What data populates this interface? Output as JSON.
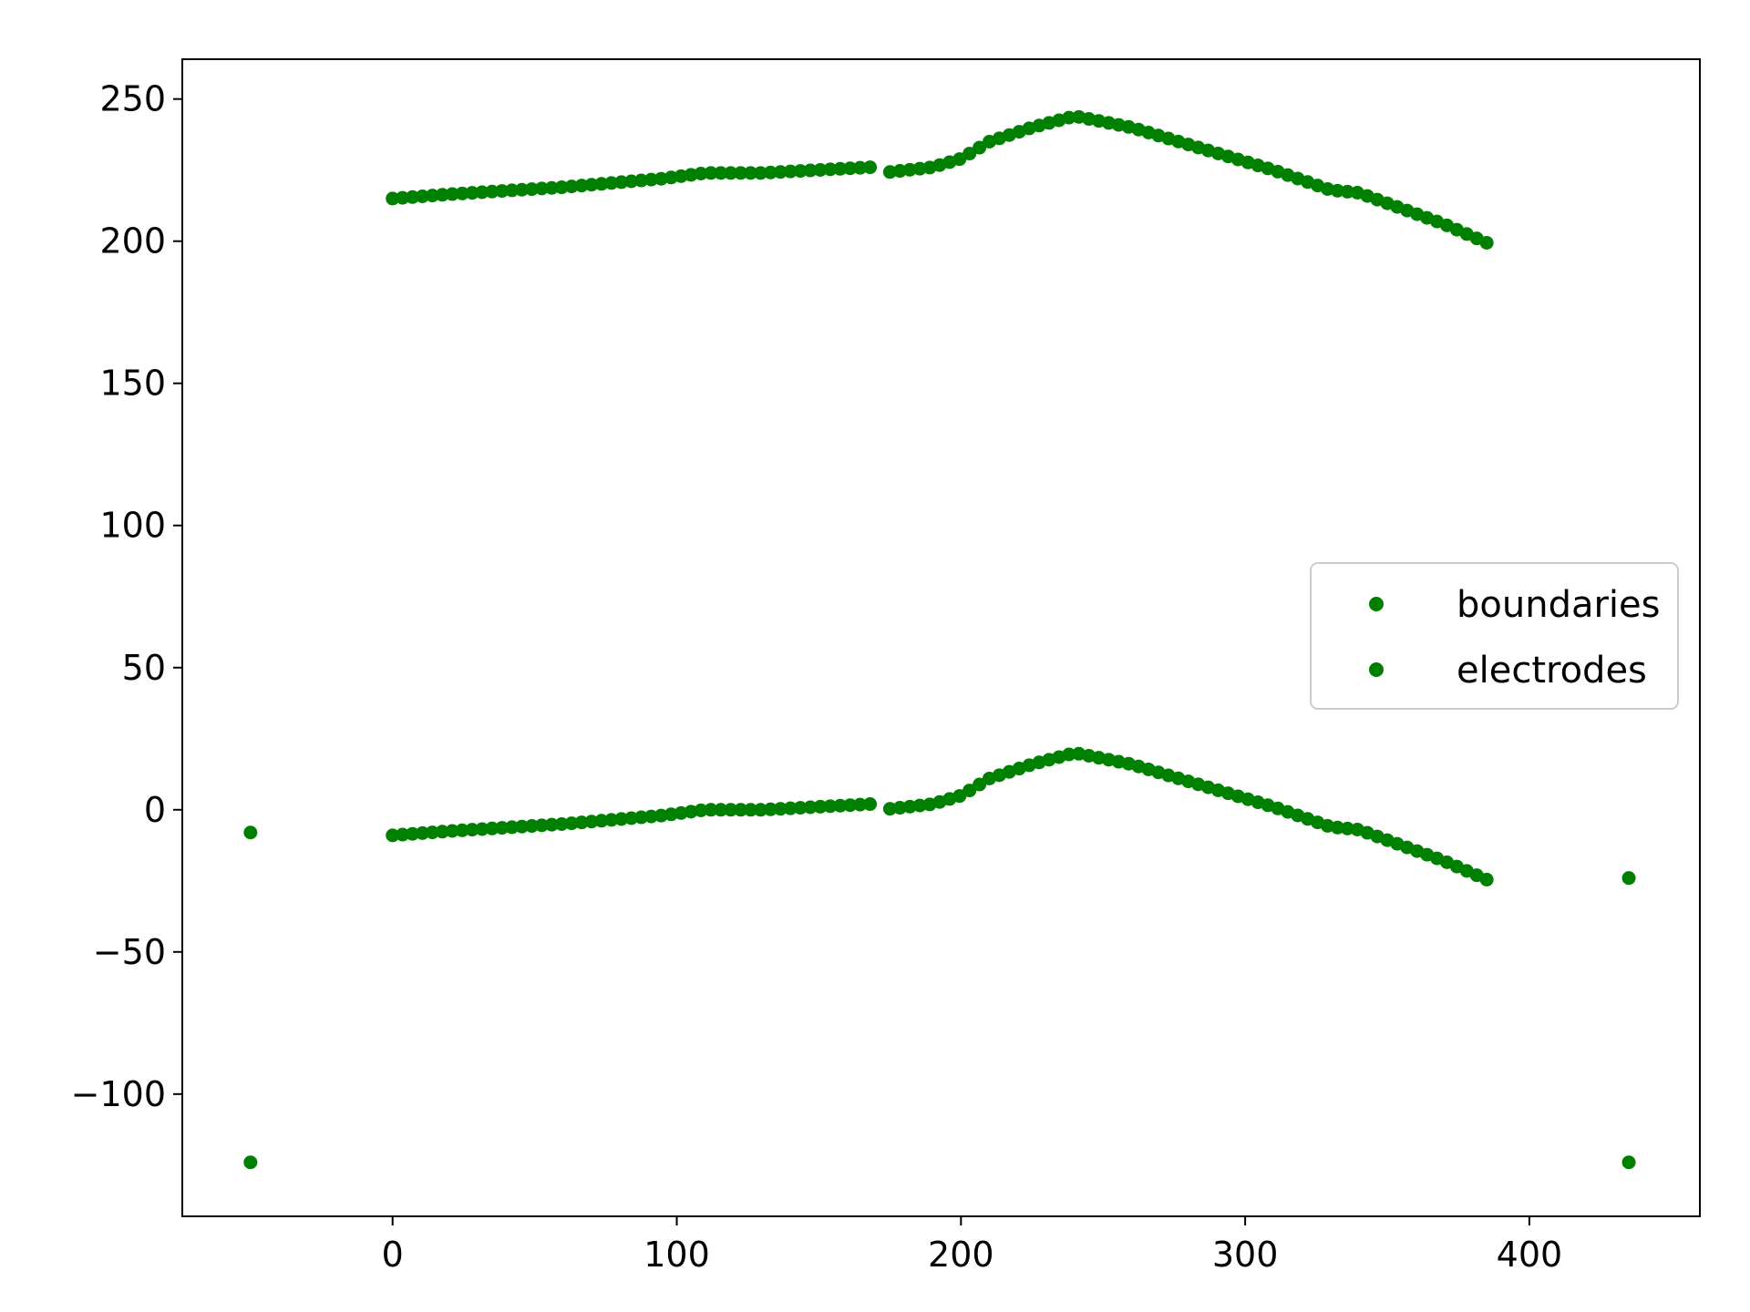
{
  "chart_data": {
    "type": "scatter",
    "title": "",
    "xlabel": "",
    "ylabel": "",
    "xlim": [
      -74,
      460
    ],
    "ylim": [
      -143,
      264
    ],
    "xticks": [
      0,
      100,
      200,
      300,
      400
    ],
    "yticks": [
      -100,
      -50,
      0,
      50,
      100,
      150,
      200,
      250
    ],
    "xtick_labels": [
      "0",
      "100",
      "200",
      "300",
      "400"
    ],
    "ytick_labels": [
      "−100",
      "−50",
      "0",
      "50",
      "100",
      "150",
      "200",
      "250"
    ],
    "grid": false,
    "legend": {
      "position": "center-right",
      "entries": [
        "boundaries",
        "electrodes"
      ]
    },
    "series": [
      {
        "name": "boundaries",
        "color": "#008000",
        "points": [
          [
            -50,
            -8
          ],
          [
            -50,
            -124
          ],
          [
            435,
            -24
          ],
          [
            435,
            -124
          ]
        ]
      },
      {
        "name": "electrodes",
        "color": "#008000",
        "upper_knots": [
          [
            0,
            215
          ],
          [
            20,
            216.5
          ],
          [
            60,
            219
          ],
          [
            95,
            222
          ],
          [
            110,
            224
          ],
          [
            130,
            224
          ],
          [
            168,
            226
          ],
          [
            172,
            224
          ],
          [
            190,
            226
          ],
          [
            200,
            229
          ],
          [
            210,
            235
          ],
          [
            225,
            240
          ],
          [
            240,
            244
          ],
          [
            260,
            240
          ],
          [
            280,
            234
          ],
          [
            310,
            225
          ],
          [
            330,
            218
          ],
          [
            340,
            217
          ],
          [
            370,
            206
          ],
          [
            386,
            199
          ]
        ],
        "lower_knots": [
          [
            0,
            -9
          ],
          [
            20,
            -7.5
          ],
          [
            60,
            -5
          ],
          [
            95,
            -2
          ],
          [
            110,
            0
          ],
          [
            130,
            0
          ],
          [
            168,
            2
          ],
          [
            172,
            0
          ],
          [
            190,
            2
          ],
          [
            200,
            5
          ],
          [
            210,
            11
          ],
          [
            225,
            16
          ],
          [
            240,
            20
          ],
          [
            260,
            16
          ],
          [
            280,
            10
          ],
          [
            310,
            1
          ],
          [
            330,
            -6
          ],
          [
            340,
            -7
          ],
          [
            370,
            -18
          ],
          [
            386,
            -25
          ]
        ]
      }
    ]
  }
}
